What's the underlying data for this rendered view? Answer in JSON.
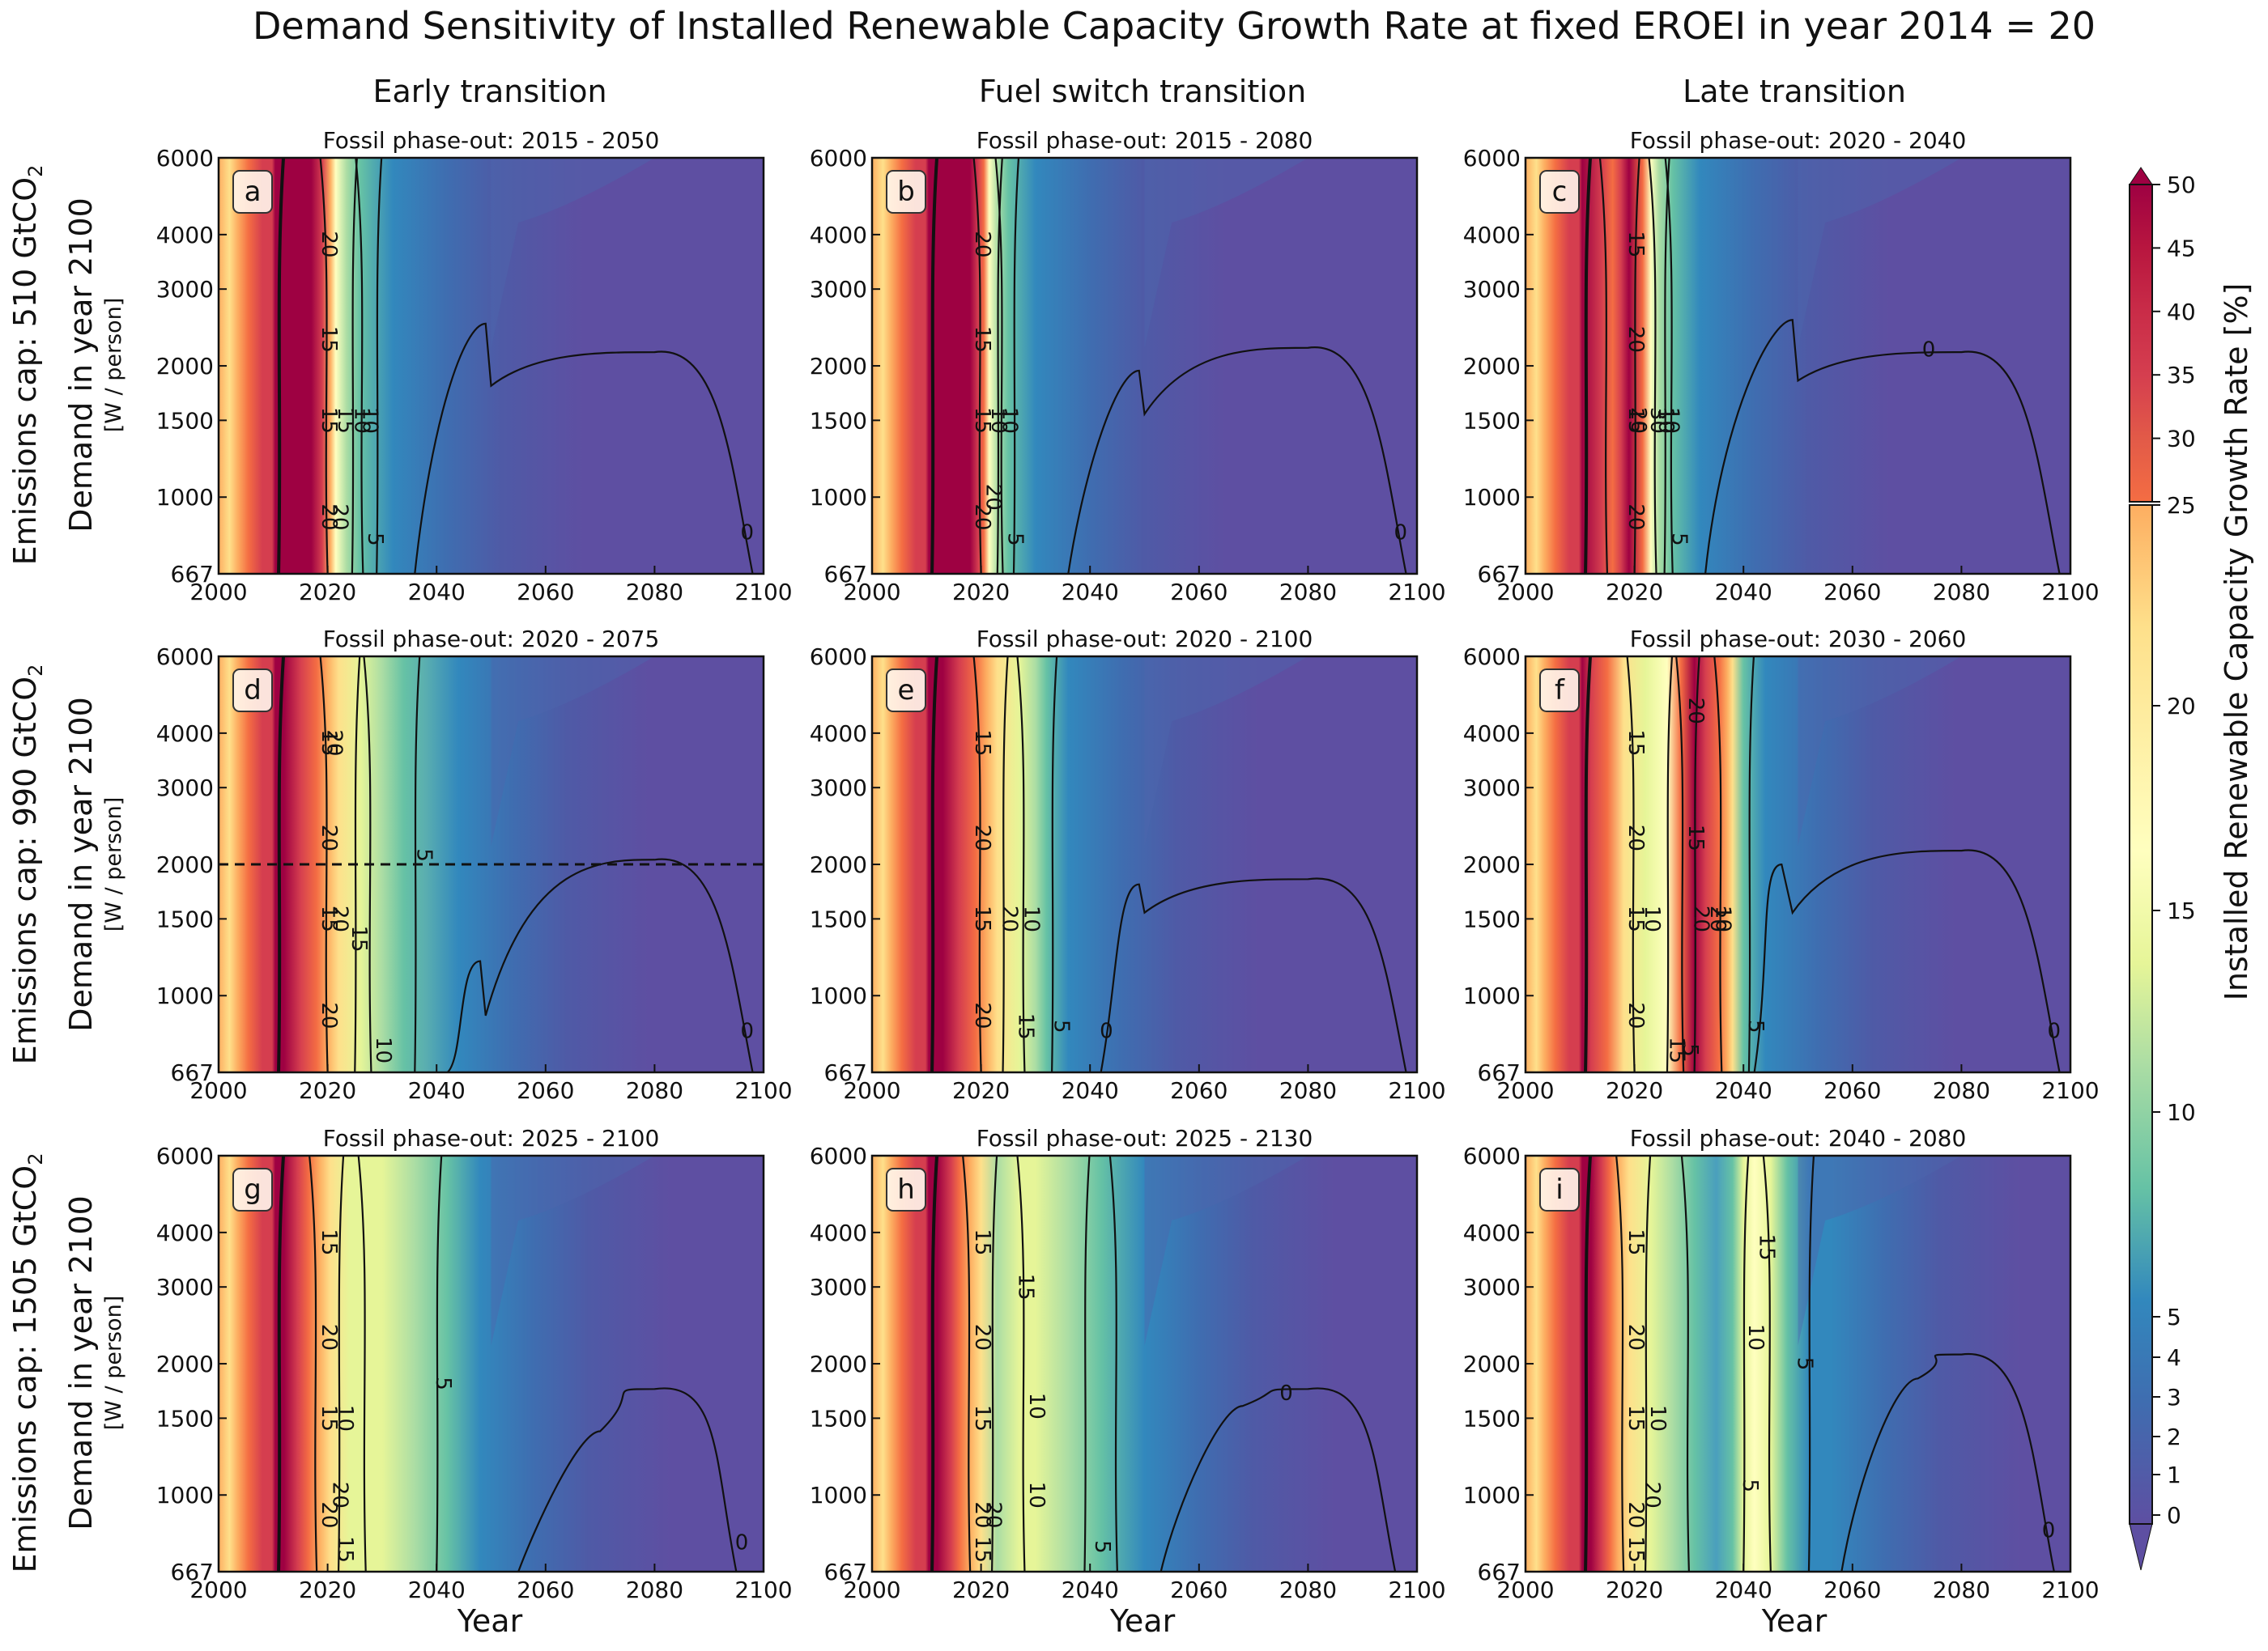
{
  "figure": {
    "title": "Demand Sensitivity of Installed Renewable Capacity Growth Rate at fixed EROEI in year 2014 = 20",
    "columns": [
      "Early transition",
      "Fuel switch transition",
      "Late transition"
    ],
    "rows": [
      {
        "cap_prefix": "Emissions cap: 510 GtCO",
        "cap_sub": "2",
        "demand_label": "Demand in year 2100",
        "unit": "[W / person]"
      },
      {
        "cap_prefix": "Emissions cap: 990 GtCO",
        "cap_sub": "2",
        "demand_label": "Demand in year 2100",
        "unit": "[W / person]"
      },
      {
        "cap_prefix": "Emissions cap: 1505 GtCO",
        "cap_sub": "2",
        "demand_label": "Demand in year 2100",
        "unit": "[W / person]"
      }
    ],
    "xlabel": "Year",
    "colorbar": {
      "label": "Installed Renewable Capacity Growth Rate [%]",
      "upper_ticks": [
        "25",
        "30",
        "35",
        "40",
        "45",
        "50"
      ],
      "lower_ticks": [
        "0",
        "1",
        "2",
        "3",
        "4",
        "5",
        "10",
        "15",
        "20",
        "25"
      ]
    },
    "colors": {
      "deep_red": "#9e0142",
      "red": "#d53e4f",
      "orange": "#f46d43",
      "light_orange": "#fdae61",
      "pale_yellow": "#fee08b",
      "cream": "#ffffbf",
      "pale_green": "#e6f598",
      "green": "#abdda4",
      "teal": "#66c2a5",
      "blue": "#3288bd",
      "purple": "#5e4fa2"
    }
  },
  "chart_data": [
    {
      "panel": "a",
      "type": "contour",
      "subtitle": "Fossil phase-out: 2015 - 2050",
      "xlim": [
        2000,
        2100
      ],
      "ylim": [
        667,
        6000
      ],
      "yscale": "log",
      "x_ticks": [
        "2000",
        "2020",
        "2040",
        "2060",
        "2080",
        "2100"
      ],
      "y_ticks": [
        "667",
        "1000",
        "1500",
        "2000",
        "3000",
        "4000",
        "6000"
      ],
      "contour_labels": [
        "20",
        "15",
        "15",
        "20",
        "20",
        "15",
        "10",
        "10",
        "5",
        "0"
      ]
    },
    {
      "panel": "b",
      "type": "contour",
      "subtitle": "Fossil phase-out: 2015 - 2080",
      "xlim": [
        2000,
        2100
      ],
      "ylim": [
        667,
        6000
      ],
      "yscale": "log",
      "x_ticks": [
        "2000",
        "2020",
        "2040",
        "2060",
        "2080",
        "2100"
      ],
      "y_ticks": [
        "667",
        "1000",
        "1500",
        "2000",
        "3000",
        "4000",
        "6000"
      ],
      "contour_labels": [
        "20",
        "15",
        "15",
        "20",
        "20",
        "10",
        "10",
        "5",
        "0"
      ]
    },
    {
      "panel": "c",
      "type": "contour",
      "subtitle": "Fossil phase-out: 2020 - 2040",
      "xlim": [
        2000,
        2100
      ],
      "ylim": [
        667,
        6000
      ],
      "yscale": "log",
      "x_ticks": [
        "2000",
        "2020",
        "2040",
        "2060",
        "2080",
        "2100"
      ],
      "y_ticks": [
        "667",
        "1000",
        "1500",
        "2000",
        "3000",
        "4000",
        "6000"
      ],
      "contour_labels": [
        "15",
        "20",
        "15",
        "20",
        "20",
        "30",
        "10",
        "10",
        "5",
        "0"
      ]
    },
    {
      "panel": "d",
      "type": "contour",
      "subtitle": "Fossil phase-out: 2020 - 2075",
      "xlim": [
        2000,
        2100
      ],
      "ylim": [
        667,
        6000
      ],
      "yscale": "log",
      "x_ticks": [
        "2000",
        "2020",
        "2040",
        "2060",
        "2080",
        "2100"
      ],
      "y_ticks": [
        "667",
        "1000",
        "1500",
        "2000",
        "3000",
        "4000",
        "6000"
      ],
      "reference_line_y": 2000,
      "contour_labels": [
        "15",
        "20",
        "20",
        "15",
        "20",
        "20",
        "15",
        "5",
        "10",
        "0"
      ]
    },
    {
      "panel": "e",
      "type": "contour",
      "subtitle": "Fossil phase-out: 2020 - 2100",
      "xlim": [
        2000,
        2100
      ],
      "ylim": [
        667,
        6000
      ],
      "yscale": "log",
      "x_ticks": [
        "2000",
        "2020",
        "2040",
        "2060",
        "2080",
        "2100"
      ],
      "y_ticks": [
        "667",
        "1000",
        "1500",
        "2000",
        "3000",
        "4000",
        "6000"
      ],
      "contour_labels": [
        "15",
        "20",
        "15",
        "20",
        "20",
        "10",
        "15",
        "5",
        "0"
      ]
    },
    {
      "panel": "f",
      "type": "contour",
      "subtitle": "Fossil phase-out: 2030 - 2060",
      "xlim": [
        2000,
        2100
      ],
      "ylim": [
        667,
        6000
      ],
      "yscale": "log",
      "x_ticks": [
        "2000",
        "2020",
        "2040",
        "2060",
        "2080",
        "2100"
      ],
      "y_ticks": [
        "667",
        "1000",
        "1500",
        "2000",
        "3000",
        "4000",
        "6000"
      ],
      "contour_labels": [
        "15",
        "20",
        "15",
        "20",
        "10",
        "20",
        "15",
        "15",
        "20",
        "20",
        "10",
        "5",
        "5",
        "0"
      ]
    },
    {
      "panel": "g",
      "type": "contour",
      "subtitle": "Fossil phase-out: 2025 - 2100",
      "xlim": [
        2000,
        2100
      ],
      "ylim": [
        667,
        6000
      ],
      "yscale": "log",
      "x_ticks": [
        "2000",
        "2020",
        "2040",
        "2060",
        "2080",
        "2100"
      ],
      "y_ticks": [
        "667",
        "1000",
        "1500",
        "2000",
        "3000",
        "4000",
        "6000"
      ],
      "contour_labels": [
        "15",
        "20",
        "15",
        "20",
        "20",
        "15",
        "10",
        "5",
        "0"
      ]
    },
    {
      "panel": "h",
      "type": "contour",
      "subtitle": "Fossil phase-out: 2025 - 2130",
      "xlim": [
        2000,
        2100
      ],
      "ylim": [
        667,
        6000
      ],
      "yscale": "log",
      "x_ticks": [
        "2000",
        "2020",
        "2040",
        "2060",
        "2080",
        "2100"
      ],
      "y_ticks": [
        "667",
        "1000",
        "1500",
        "2000",
        "3000",
        "4000",
        "6000"
      ],
      "contour_labels": [
        "15",
        "20",
        "15",
        "20",
        "20",
        "15",
        "15",
        "10",
        "10",
        "5",
        "0"
      ]
    },
    {
      "panel": "i",
      "type": "contour",
      "subtitle": "Fossil phase-out: 2040 - 2080",
      "xlim": [
        2000,
        2100
      ],
      "ylim": [
        667,
        6000
      ],
      "yscale": "log",
      "x_ticks": [
        "2000",
        "2020",
        "2040",
        "2060",
        "2080",
        "2100"
      ],
      "y_ticks": [
        "667",
        "1000",
        "1500",
        "2000",
        "3000",
        "4000",
        "6000"
      ],
      "contour_labels": [
        "15",
        "20",
        "15",
        "20",
        "20",
        "15",
        "10",
        "15",
        "10",
        "5",
        "5",
        "0"
      ]
    }
  ]
}
